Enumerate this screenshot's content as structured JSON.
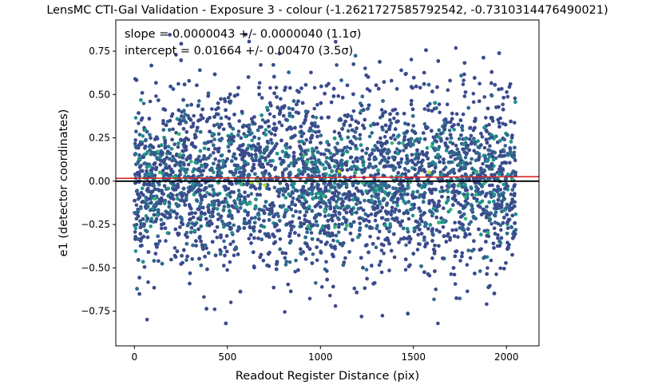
{
  "chart_data": {
    "type": "scatter",
    "title": "LensMC CTI-Gal Validation - Exposure 3 - colour (-1.2621727585792542, -0.7310314476490021)",
    "xlabel": "Readout Register Distance (pix)",
    "ylabel": "e1 (detector coordinates)",
    "xlim": [
      -100,
      2175
    ],
    "ylim": [
      -0.95,
      0.93
    ],
    "xticks": [
      0,
      500,
      1000,
      1500,
      2000
    ],
    "yticks": [
      -0.75,
      -0.5,
      -0.25,
      0.0,
      0.25,
      0.5,
      0.75
    ],
    "xtick_labels": [
      "0",
      "500",
      "1000",
      "1500",
      "2000"
    ],
    "ytick_labels": [
      "−0.75",
      "−0.50",
      "−0.25",
      "0.00",
      "0.25",
      "0.50",
      "0.75"
    ],
    "grid": false,
    "annotations": {
      "slope": "slope = 0.0000043 +/- 0.0000040 (1.1σ)",
      "intercept": "intercept = 0.01664 +/- 0.00470 (3.5σ)"
    },
    "fit_line": {
      "slope": 4.3e-06,
      "intercept": 0.01664,
      "color": "#d62728"
    },
    "zero_line": {
      "y": 0.0,
      "color": "#000000"
    },
    "scatter": {
      "x_range": [
        0,
        2050
      ],
      "colormap": "viridis",
      "colors": {
        "sparse": "#3b4b8c",
        "medium": "#31688e",
        "dense": "#21918c",
        "denser": "#35b779",
        "peak": "#b5de2b"
      },
      "marker_size": 2.3
    }
  }
}
